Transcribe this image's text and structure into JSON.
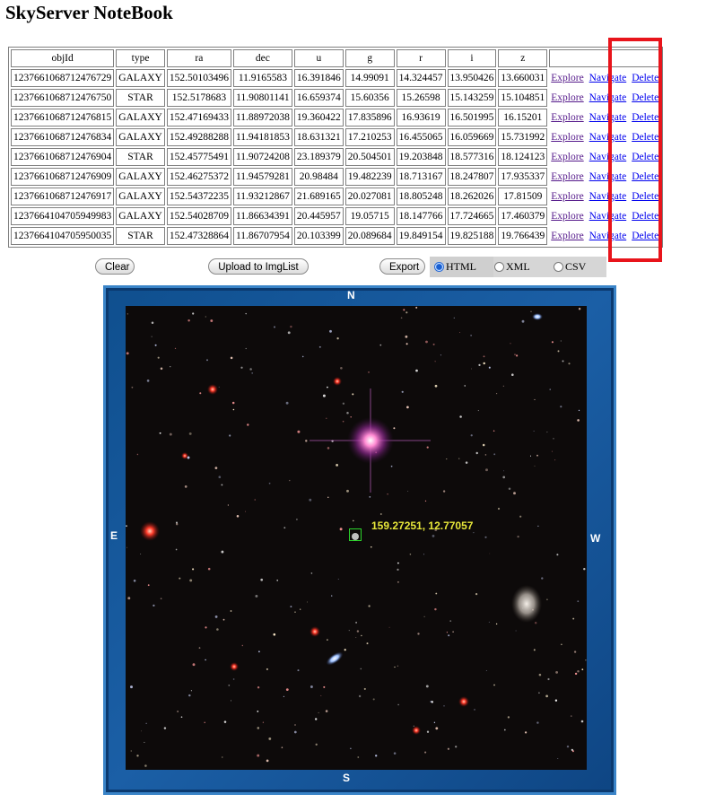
{
  "page_title": "SkyServer NoteBook",
  "table": {
    "headers": [
      "objId",
      "type",
      "ra",
      "dec",
      "u",
      "g",
      "r",
      "i",
      "z",
      ""
    ],
    "rows": [
      [
        "1237661068712476729",
        "GALAXY",
        "152.50103496",
        "11.9165583",
        "16.391846",
        "14.99091",
        "14.324457",
        "13.950426",
        "13.660031"
      ],
      [
        "1237661068712476750",
        "STAR",
        "152.5178683",
        "11.90801141",
        "16.659374",
        "15.60356",
        "15.26598",
        "15.143259",
        "15.104851"
      ],
      [
        "1237661068712476815",
        "GALAXY",
        "152.47169433",
        "11.88972038",
        "19.360422",
        "17.835896",
        "16.93619",
        "16.501995",
        "16.15201"
      ],
      [
        "1237661068712476834",
        "GALAXY",
        "152.49288288",
        "11.94181853",
        "18.631321",
        "17.210253",
        "16.455065",
        "16.059669",
        "15.731992"
      ],
      [
        "1237661068712476904",
        "STAR",
        "152.45775491",
        "11.90724208",
        "23.189379",
        "20.504501",
        "19.203848",
        "18.577316",
        "18.124123"
      ],
      [
        "1237661068712476909",
        "GALAXY",
        "152.46275372",
        "11.94579281",
        "20.98484",
        "19.482239",
        "18.713167",
        "18.247807",
        "17.935337"
      ],
      [
        "1237661068712476917",
        "GALAXY",
        "152.54372235",
        "11.93212867",
        "21.689165",
        "20.027081",
        "18.805248",
        "18.262026",
        "17.81509"
      ],
      [
        "1237664104705949983",
        "GALAXY",
        "152.54028709",
        "11.86634391",
        "20.445957",
        "19.05715",
        "18.147766",
        "17.724665",
        "17.460379"
      ],
      [
        "1237664104705950035",
        "STAR",
        "152.47328864",
        "11.86707954",
        "20.103399",
        "20.089684",
        "19.849154",
        "19.825188",
        "19.766439"
      ]
    ],
    "actions": {
      "explore": "Explore",
      "navigate": "Navigate",
      "delete": "Delete"
    }
  },
  "buttons": {
    "clear": "Clear",
    "upload": "Upload to ImgList",
    "export": "Export"
  },
  "formats": [
    {
      "label": "HTML",
      "selected": true
    },
    {
      "label": "XML",
      "selected": false
    },
    {
      "label": "CSV",
      "selected": false
    }
  ],
  "navigator": {
    "north": "N",
    "south": "S",
    "east": "E",
    "west": "W",
    "coords": "159.27251, 12.77057"
  },
  "colors": {
    "highlight": "#e8141b",
    "frame": "#1b5fa6",
    "target": "#2cd42c",
    "coords": "#e8e83a",
    "link": "#0000ee"
  }
}
